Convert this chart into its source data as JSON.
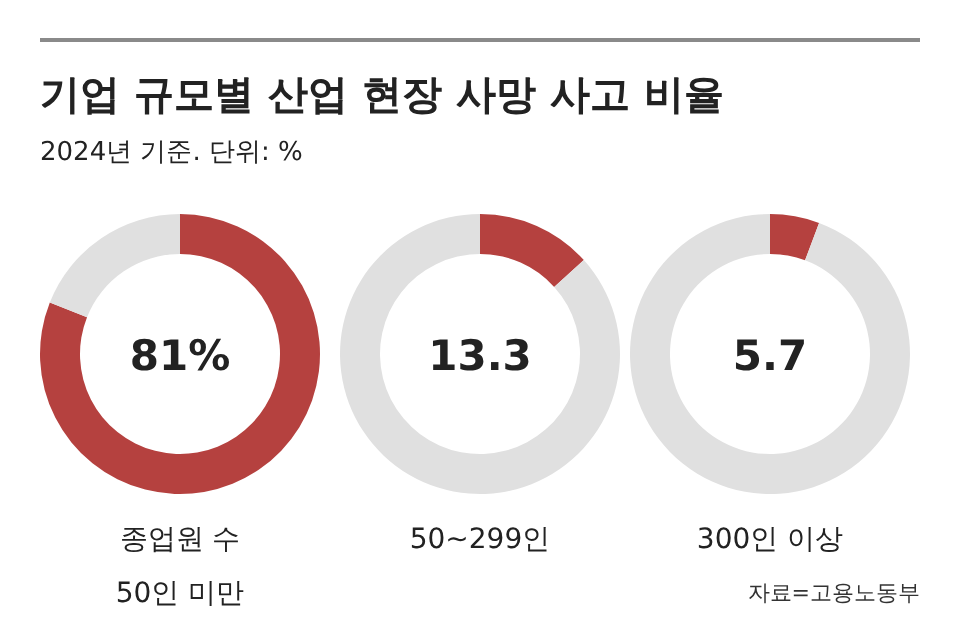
{
  "chart_data": [
    {
      "type": "donut",
      "title": "기업 규모별 산업 현장 사망 사고 비율",
      "subtitle": "2024년 기준. 단위: %",
      "xlabel": "종업원 수\n50인 미만",
      "categories": [
        null,
        null
      ],
      "values": [
        81,
        19
      ],
      "colors": [
        "#b5413f",
        "#e0e0e0"
      ],
      "annotations": [
        "81%"
      ]
    },
    {
      "type": "donut",
      "xlabel": "50~299인",
      "categories": [
        null,
        null
      ],
      "values": [
        13.3,
        86.7
      ],
      "colors": [
        "#b5413f",
        "#e0e0e0"
      ],
      "annotations": [
        "13.3"
      ]
    },
    {
      "type": "donut",
      "xlabel": "300인 이상",
      "categories": [
        null,
        null
      ],
      "values": [
        5.7,
        94.3
      ],
      "colors": [
        "#b5413f",
        "#e0e0e0"
      ],
      "annotations": [
        "5.7",
        "자료=고용노동부"
      ]
    }
  ]
}
